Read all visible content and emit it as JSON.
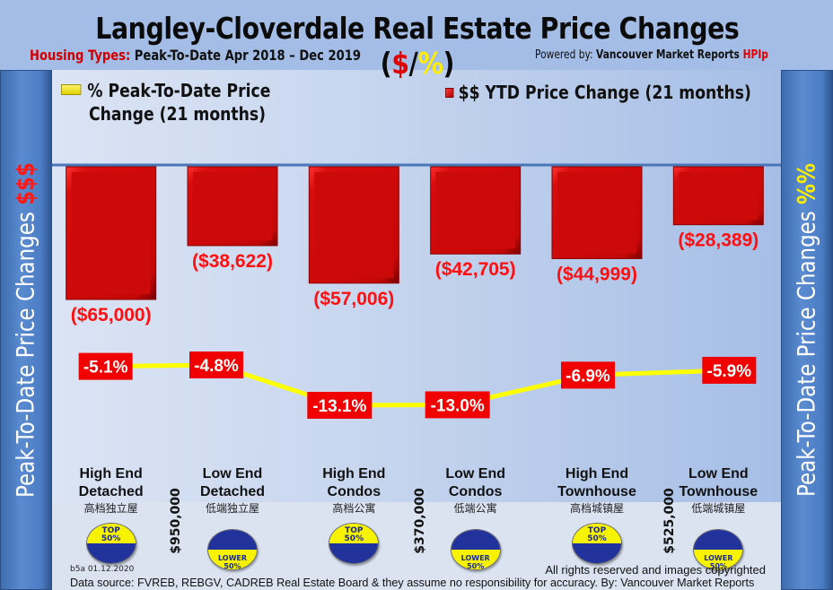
{
  "header": {
    "title_main": "Langley-Cloverdale Real Estate Price Changes (",
    "title_dollar": "$",
    "title_slash": "/",
    "title_pct": "%",
    "title_close": ")",
    "subtitle_label": "Housing Types:",
    "subtitle_text": " Peak-To-Date Apr 2018 – Dec 2019",
    "powered_prefix": "Powered by: ",
    "powered_brand": "Vancouver Market Reports ",
    "powered_hpi": "HPIp"
  },
  "side_labels": {
    "left_text": "Peak-To-Date Price Changes ",
    "left_accent": "$$$",
    "right_text": "Peak-To-Date  Price  Changes ",
    "right_accent": "%%"
  },
  "legend": {
    "pct_line1": "% Peak-To-Date Price",
    "pct_line2": "Change (21 months)",
    "usd": "$$ YTD Price Change (21 months)"
  },
  "chart_data": {
    "type": "bar",
    "title": "Langley-Cloverdale Real Estate Price Changes ($/%)",
    "subtitle": "Housing Types: Peak-To-Date Apr 2018 – Dec 2019",
    "categories": [
      "High End Detached",
      "Low End Detached",
      "High End Condos",
      "Low End Condos",
      "High End Townhouse",
      "Low End Townhouse"
    ],
    "categories_zh": [
      "高档独立屋",
      "低端独立屋",
      "高档公寓",
      "低端公寓",
      "高档城镇屋",
      "低端城镇屋"
    ],
    "series": [
      {
        "name": "$$ YTD Price Change (21 months)",
        "type": "bar",
        "values": [
          -65000,
          -38622,
          -57006,
          -42705,
          -44999,
          -28389
        ],
        "labels": [
          "($65,000)",
          "($38,622)",
          "($57,006)",
          "($42,705)",
          "($44,999)",
          "($28,389)"
        ],
        "color": "#cc0a0a"
      },
      {
        "name": "% Peak-To-Date Price Change (21 months)",
        "type": "line",
        "values": [
          -5.1,
          -4.8,
          -13.1,
          -13.0,
          -6.9,
          -5.9
        ],
        "labels": [
          "-5.1%",
          "-4.8%",
          "-13.1%",
          "-13.0%",
          "-6.9%",
          "-5.9%"
        ],
        "color": "#ffff00"
      }
    ],
    "xlabel": "",
    "ylabel_left": "Peak-To-Date Price Changes $$$",
    "ylabel_right": "Peak-To-Date Price Changes %%",
    "bar_ylim": [
      -70000,
      0
    ],
    "line_ylim": [
      -16,
      0
    ],
    "grid": false,
    "legend_position": "top"
  },
  "segments": [
    {
      "label": "TOP",
      "sub": "50%",
      "kind": "top"
    },
    {
      "label": "LOWER",
      "sub": "50%",
      "kind": "lower"
    },
    {
      "label": "TOP",
      "sub": "50%",
      "kind": "top"
    },
    {
      "label": "LOWER",
      "sub": "50%",
      "kind": "lower"
    },
    {
      "label": "TOP",
      "sub": "50%",
      "kind": "top"
    },
    {
      "label": "LOWER",
      "sub": "50%",
      "kind": "lower"
    }
  ],
  "thresholds": [
    "$950,000",
    "$370,000",
    "$525,000"
  ],
  "footer": {
    "date_stamp": "b5a 01.12.2020",
    "rights": "All rights reserved and  images copyrighted",
    "source": "Data source: FVREB, REBGV, CADREB Real Estate Board & they assume no responsibility for accuracy. By: Vancouver Market Reports"
  },
  "colors": {
    "bar_red": "#cc0a0a",
    "label_red": "#ff1010",
    "line_yellow": "#ffff00",
    "panel_blue": "#4c7cc4"
  }
}
